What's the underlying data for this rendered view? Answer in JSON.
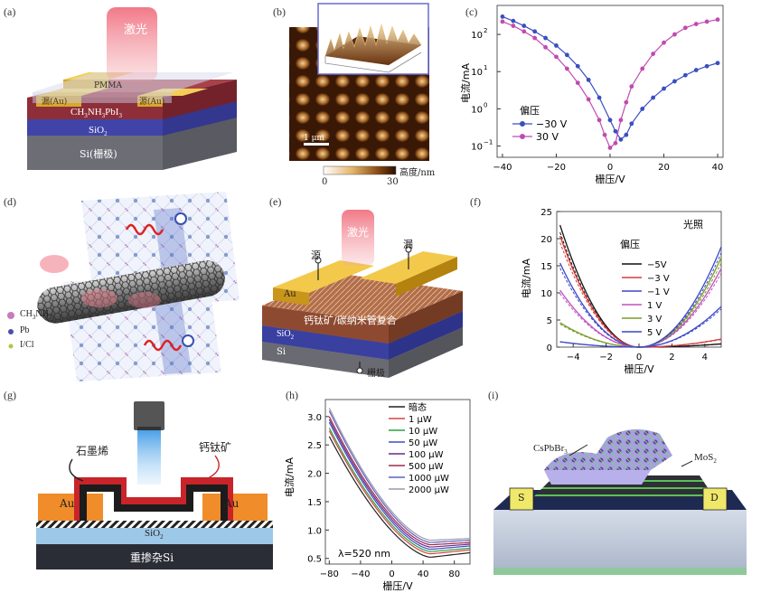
{
  "figure": {
    "a": {
      "label": "(a)",
      "laser": "激光",
      "pmma": "PMMA",
      "drain": "漏(Au)",
      "source": "源(Au)",
      "perovskite": "CH3NH3PbI3",
      "perovskite_main": "CH",
      "perovskite_sub1": "3",
      "perovskite_mid": "NH",
      "perovskite_sub2": "3",
      "perovskite_end": "PbI",
      "perovskite_sub3": "3",
      "sio2": "SiO",
      "sio2_sub": "2",
      "si": "Si(栅极)"
    },
    "b": {
      "label": "(b)",
      "scale": "1 μm",
      "colorbar_label": "高度/nm",
      "colorbar_min": "0",
      "colorbar_max": "30"
    },
    "c": {
      "label": "(c)",
      "xlabel": "栅压/V",
      "ylabel": "电流/mA",
      "legend_title": "偏压",
      "xticks": [
        "−40",
        "−20",
        "0",
        "20",
        "40"
      ],
      "yticks": [
        {
          "base": "10",
          "exp": "2"
        },
        {
          "base": "10",
          "exp": "1"
        },
        {
          "base": "10",
          "exp": "0"
        },
        {
          "base": "10",
          "exp": "−1"
        }
      ]
    },
    "d": {
      "label": "(d)",
      "legend": [
        "CH3NH3",
        "Pb",
        "I/Cl"
      ],
      "legend_colors": [
        "#c87bbd",
        "#4a4fa8",
        "#b8c24a"
      ]
    },
    "e": {
      "label": "(e)",
      "laser": "激光",
      "source": "源",
      "drain": "漏",
      "au": "Au",
      "composite": "钙钛矿/碳纳米管复合",
      "sio2": "SiO",
      "sio2_sub": "2",
      "si": "Si",
      "gate": "栅极"
    },
    "f": {
      "label": "(f)",
      "xlabel": "栅压/V",
      "ylabel": "电流/mA",
      "light": "光照",
      "legend_title": "偏压",
      "xticks": [
        "−4",
        "−2",
        "0",
        "2",
        "4"
      ],
      "yticks": [
        "0",
        "5",
        "10",
        "15",
        "20",
        "25"
      ]
    },
    "g": {
      "label": "(g)",
      "graphene": "石墨烯",
      "perovskite": "钙钛矿",
      "au_left": "Au",
      "au_right": "Au",
      "sio2": "SiO",
      "sio2_sub": "2",
      "si": "重掺杂Si"
    },
    "h": {
      "label": "(h)",
      "xlabel": "栅压/V",
      "ylabel": "电流/mA",
      "annotation": "λ=520 nm",
      "xticks": [
        "−80",
        "−40",
        "0",
        "40",
        "80"
      ],
      "yticks": [
        "0.5",
        "1.0",
        "1.5",
        "2.0",
        "2.5",
        "3.0"
      ]
    },
    "i": {
      "label": "(i)",
      "cspbbr3": "CsPbBr",
      "cspbbr3_sub": "3",
      "mos2": "MoS",
      "mos2_sub": "2",
      "s": "S",
      "d": "D"
    }
  },
  "chart_data": [
    {
      "panel": "c",
      "type": "line",
      "xlabel": "栅压/V",
      "ylabel": "电流/mA",
      "xlim": [
        -42,
        42
      ],
      "ylim": [
        0.05,
        600
      ],
      "yscale": "log",
      "legend_placement": "bottom-left",
      "series": [
        {
          "name": "−30 V",
          "color": "#3a4fc0",
          "x": [
            -40,
            -36,
            -32,
            -28,
            -24,
            -20,
            -16,
            -12,
            -8,
            -4,
            0,
            2,
            4,
            6,
            8,
            12,
            16,
            20,
            24,
            28,
            32,
            36,
            40
          ],
          "y": [
            300,
            230,
            170,
            120,
            80,
            50,
            28,
            14,
            6,
            2,
            0.5,
            0.25,
            0.15,
            0.2,
            0.4,
            1,
            2,
            3.5,
            5.5,
            8,
            11,
            14,
            17
          ]
        },
        {
          "name": "30 V",
          "color": "#c04bb0",
          "x": [
            -40,
            -36,
            -32,
            -28,
            -24,
            -20,
            -16,
            -12,
            -8,
            -4,
            -2,
            0,
            2,
            4,
            6,
            8,
            12,
            16,
            20,
            24,
            28,
            32,
            36,
            40
          ],
          "y": [
            220,
            170,
            120,
            80,
            45,
            25,
            12,
            5,
            1.8,
            0.5,
            0.2,
            0.09,
            0.12,
            0.5,
            1.5,
            4,
            12,
            30,
            60,
            100,
            150,
            190,
            220,
            250
          ]
        }
      ]
    },
    {
      "panel": "f",
      "type": "line",
      "xlabel": "栅压/V",
      "ylabel": "电流/mA",
      "xlim": [
        -5,
        5
      ],
      "ylim": [
        0,
        25
      ],
      "legend_placement": "top-right",
      "series": [
        {
          "name": "−5V",
          "color": "#111111",
          "left": 22.5,
          "right": 0.6
        },
        {
          "name": "−3 V",
          "color": "#d83a3a",
          "left": 20.5,
          "right": 1.5
        },
        {
          "name": "−1 V",
          "color": "#3a46c8",
          "left": 15.5,
          "right": 7.5
        },
        {
          "name": "1 V",
          "color": "#c050c0",
          "left": 10.5,
          "right": 14.5
        },
        {
          "name": "3 V",
          "color": "#7a9a2a",
          "left": 4.5,
          "right": 16.5
        },
        {
          "name": "5 V",
          "color": "#3a46c8",
          "left": 1.0,
          "right": 18.5
        }
      ]
    },
    {
      "panel": "h",
      "type": "line",
      "xlabel": "栅压/V",
      "ylabel": "电流/mA",
      "xlim": [
        -85,
        100
      ],
      "ylim": [
        0.4,
        3.3
      ],
      "legend_placement": "top-right",
      "series": [
        {
          "name": "暗态",
          "color": "#222222",
          "start": 2.65,
          "min": 0.52,
          "end": 0.6
        },
        {
          "name": "1 μW",
          "color": "#d84040",
          "start": 2.75,
          "min": 0.58,
          "end": 0.65
        },
        {
          "name": "10 μW",
          "color": "#2e9e3e",
          "start": 2.8,
          "min": 0.62,
          "end": 0.68
        },
        {
          "name": "50 μW",
          "color": "#3e4ec0",
          "start": 2.9,
          "min": 0.66,
          "end": 0.72
        },
        {
          "name": "100 μW",
          "color": "#6a2a8a",
          "start": 2.95,
          "min": 0.7,
          "end": 0.75
        },
        {
          "name": "500 μW",
          "color": "#a02a4a",
          "start": 3.0,
          "min": 0.74,
          "end": 0.78
        },
        {
          "name": "1000 μW",
          "color": "#6060c0",
          "start": 3.1,
          "min": 0.78,
          "end": 0.82
        },
        {
          "name": "2000 μW",
          "color": "#9a9aaa",
          "start": 3.15,
          "min": 0.82,
          "end": 0.85
        }
      ]
    }
  ]
}
